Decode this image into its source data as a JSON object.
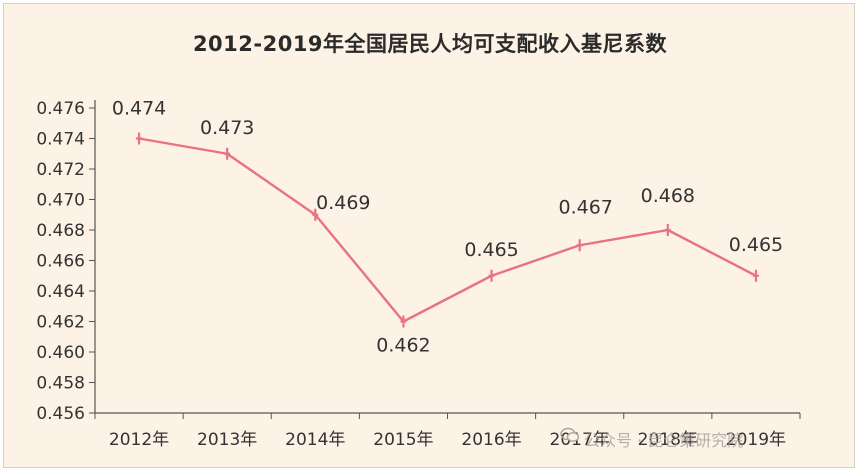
{
  "chart_data": {
    "type": "line",
    "title": "2012-2019年全国居民人均可支配收入基尼系数",
    "categories": [
      "2012年",
      "2013年",
      "2014年",
      "2015年",
      "2016年",
      "2017年",
      "2018年",
      "2019年"
    ],
    "series": [
      {
        "values": [
          0.474,
          0.473,
          0.469,
          0.462,
          0.465,
          0.467,
          0.468,
          0.465
        ]
      }
    ],
    "data_labels": [
      "0.474",
      "0.473",
      "0.469",
      "0.462",
      "0.465",
      "0.467",
      "0.468",
      "0.465"
    ],
    "yticks": [
      "0.456",
      "0.458",
      "0.460",
      "0.462",
      "0.464",
      "0.466",
      "0.468",
      "0.470",
      "0.472",
      "0.474",
      "0.476"
    ],
    "ylim": [
      0.456,
      0.476
    ],
    "xlabel": "",
    "ylabel": "",
    "grid": false,
    "colors": {
      "line": "#e8737f",
      "background": "#fcf3e6",
      "axis": "#555555"
    }
  },
  "watermark": {
    "text": "公众号 · 昆仑策研究院",
    "icon": "wechat-icon"
  }
}
